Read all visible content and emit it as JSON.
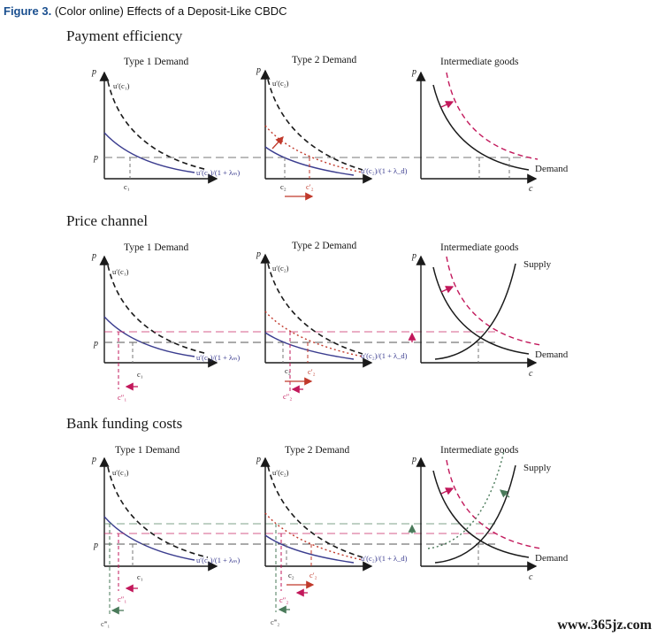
{
  "figure": {
    "label": "Figure 3.",
    "caption": "(Color online) Effects of a Deposit-Like CBDC"
  },
  "sections": [
    {
      "title": "Payment efficiency"
    },
    {
      "title": "Price channel"
    },
    {
      "title": "Bank funding costs"
    }
  ],
  "panels": {
    "type1": "Type 1 Demand",
    "type2": "Type 2 Demand",
    "intermediate": "Intermediate goods"
  },
  "labels": {
    "p": "p",
    "c": "c",
    "u1": "u′(c₁)",
    "u2": "u′(c₂)",
    "u1m": "u′(c₁)/(1 + λₘ)",
    "u2d": "u′(c₂)/(1 + λ_d)",
    "c1": "c₁",
    "c2": "c₂",
    "c2p": "c′₂",
    "c1pp": "c″₁",
    "c2pp": "c″₂",
    "c1ppp": "c‴₁",
    "c2ppp": "c‴₂",
    "demand": "Demand",
    "supply": "Supply"
  },
  "colors": {
    "axis": "#1a1a1a",
    "blue": "#3b3d8f",
    "red": "#c0392b",
    "magenta": "#c2185b",
    "green": "#4a7a5a",
    "guide": "#777777"
  },
  "watermark": "www.365jz.com"
}
